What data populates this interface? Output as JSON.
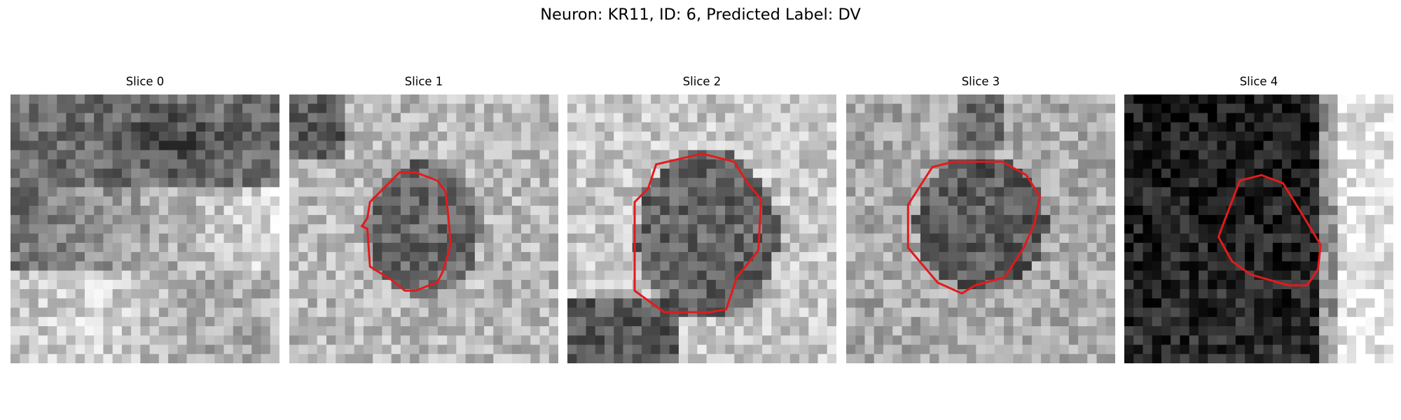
{
  "figure": {
    "title": "Neuron: KR11, ID: 6, Predicted Label: DV"
  },
  "panels": [
    {
      "title": "Slice 0",
      "contour": null,
      "image_description_kind": "noise-dark-top-light-bottom"
    },
    {
      "title": "Slice 1",
      "contour_color": "#e31a1c"
    },
    {
      "title": "Slice 2",
      "contour_color": "#e31a1c"
    },
    {
      "title": "Slice 3",
      "contour_color": "#e31a1c"
    },
    {
      "title": "Slice 4",
      "contour_color": "#e31a1c"
    }
  ],
  "colors": {
    "contour": "#e31a1c",
    "background": "#ffffff"
  }
}
